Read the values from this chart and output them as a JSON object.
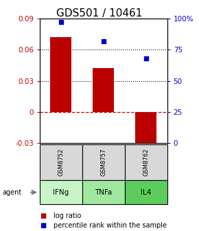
{
  "title": "GDS501 / 10461",
  "samples": [
    "GSM8752",
    "GSM8757",
    "GSM8762"
  ],
  "agents": [
    "IFNg",
    "TNFa",
    "IL4"
  ],
  "log_ratios": [
    0.072,
    0.042,
    -0.038
  ],
  "percentile_ranks": [
    0.97,
    0.82,
    0.68
  ],
  "bar_color": "#bb0000",
  "dot_color": "#0000cc",
  "left_ylim": [
    -0.03,
    0.09
  ],
  "right_ylim": [
    0,
    1.0
  ],
  "left_yticks": [
    -0.03,
    0,
    0.03,
    0.06,
    0.09
  ],
  "right_yticks": [
    0,
    0.25,
    0.5,
    0.75,
    1.0
  ],
  "right_yticklabels": [
    "0",
    "25",
    "50",
    "75",
    "100%"
  ],
  "hlines_dotted": [
    0.03,
    0.06
  ],
  "hline_dashed": 0,
  "agent_colors": [
    "#c8f5c8",
    "#a0e8a0",
    "#5ccc5c"
  ],
  "sample_color": "#d8d8d8",
  "bar_width": 0.5,
  "title_fontsize": 11,
  "tick_fontsize": 7.5,
  "legend_fontsize": 7
}
